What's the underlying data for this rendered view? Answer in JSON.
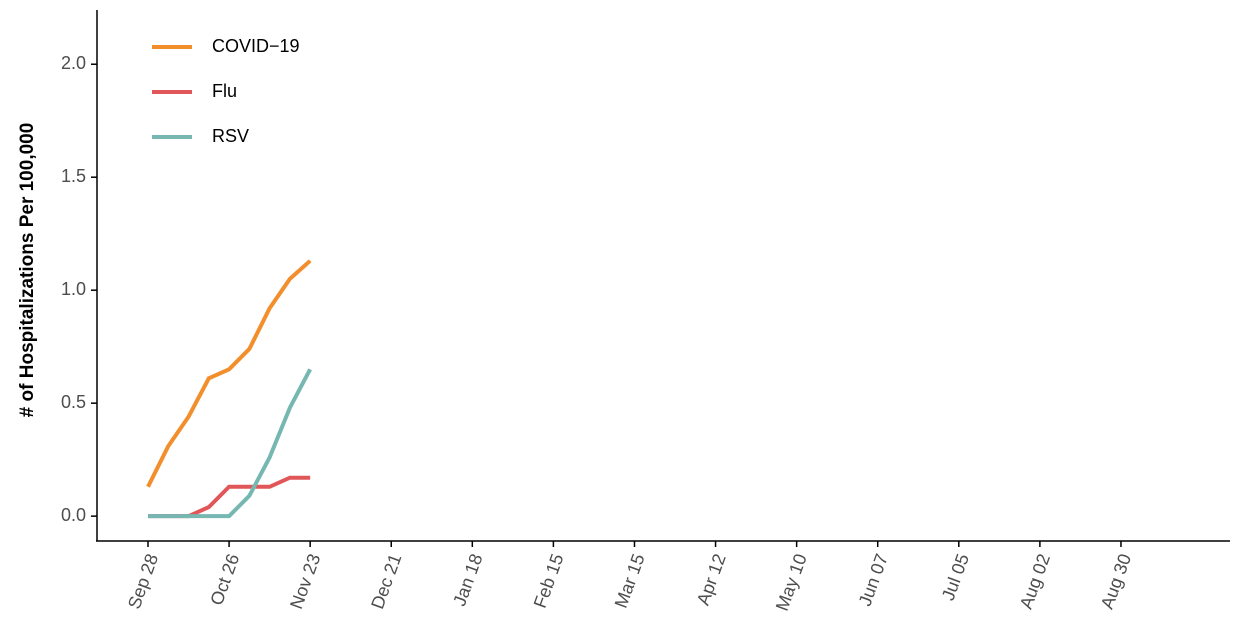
{
  "chart_data": {
    "type": "line",
    "y_label": "# of Hospitalizations Per 100,000",
    "categories": [
      "Sep 28",
      null,
      null,
      null,
      "Oct 26",
      null,
      null,
      null,
      "Nov 23",
      null,
      null,
      null,
      "Dec 21",
      null,
      null,
      null,
      "Jan 18",
      null,
      null,
      null,
      "Feb 15",
      null,
      null,
      null,
      "Mar 15",
      null,
      null,
      null,
      "Apr 12",
      null,
      null,
      null,
      "May 10",
      null,
      null,
      null,
      "Jun 07",
      null,
      null,
      null,
      "Jul 05",
      null,
      null,
      null,
      "Aug 02",
      null,
      null,
      null,
      "Aug 30"
    ],
    "series": [
      {
        "name": "COVID−19",
        "color": "#f28e2b",
        "values": [
          0.13,
          0.31,
          0.44,
          0.61,
          0.65,
          0.74,
          0.92,
          1.05,
          1.13,
          null,
          null,
          null,
          null,
          null,
          null,
          null,
          null,
          null,
          null,
          null,
          null,
          null,
          null,
          null,
          null,
          null,
          null,
          null,
          null,
          null,
          null,
          null,
          null,
          null,
          null,
          null,
          null,
          null,
          null,
          null,
          null,
          null,
          null,
          null,
          null,
          null,
          null,
          null,
          null
        ]
      },
      {
        "name": "Flu",
        "color": "#e15759",
        "values": [
          0,
          0,
          0,
          0.04,
          0.13,
          0.13,
          0.13,
          0.17,
          0.17,
          null,
          null,
          null,
          null,
          null,
          null,
          null,
          null,
          null,
          null,
          null,
          null,
          null,
          null,
          null,
          null,
          null,
          null,
          null,
          null,
          null,
          null,
          null,
          null,
          null,
          null,
          null,
          null,
          null,
          null,
          null,
          null,
          null,
          null,
          null,
          null,
          null,
          null,
          null,
          null
        ]
      },
      {
        "name": "RSV",
        "color": "#76b7b2",
        "values": [
          0,
          0,
          0,
          0,
          0,
          0.09,
          0.26,
          0.48,
          0.65,
          null,
          null,
          null,
          null,
          null,
          null,
          null,
          null,
          null,
          null,
          null,
          null,
          null,
          null,
          null,
          null,
          null,
          null,
          null,
          null,
          null,
          null,
          null,
          null,
          null,
          null,
          null,
          null,
          null,
          null,
          null,
          null,
          null,
          null,
          null,
          null,
          null,
          null,
          null,
          null
        ]
      }
    ],
    "ylim": [
      -0.11,
      2.24
    ],
    "yticks": [
      {
        "value": 0,
        "label": "0.0"
      },
      0.5,
      {
        "value": 1,
        "label": "1.0"
      },
      1.5,
      {
        "value": 2,
        "label": "2.0"
      }
    ],
    "grid": false,
    "legend": "top-left"
  }
}
